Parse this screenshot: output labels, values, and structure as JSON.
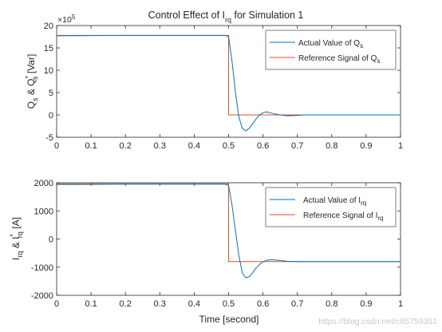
{
  "title": {
    "prefix": "Control Effect of I",
    "sub": "rq",
    "suffix": " for Simulation 1"
  },
  "watermark": "https://blog.csdn.net/c85759351",
  "colors": {
    "actual": "#0072BD",
    "reference": "#D95319",
    "axis": "#262626"
  },
  "chart_data": [
    {
      "type": "line",
      "panel": "top",
      "xlim": [
        0,
        1
      ],
      "ylim": [
        -5,
        20
      ],
      "y_multiplier": "×10",
      "y_multiplier_exp": "5",
      "x_ticks": [
        0,
        0.1,
        0.2,
        0.3,
        0.4,
        0.5,
        0.6,
        0.7,
        0.8,
        0.9,
        1
      ],
      "x_tick_labels": [
        "0",
        "0.1",
        "0.2",
        "0.3",
        "0.4",
        "0.5",
        "0.6",
        "0.7",
        "0.8",
        "0.9",
        "1"
      ],
      "y_ticks": [
        -5,
        0,
        5,
        10,
        15,
        20
      ],
      "y_tick_labels": [
        "-5",
        "0",
        "5",
        "10",
        "15",
        "20"
      ],
      "ylabel": {
        "p1": "Q",
        "p1sub": "s",
        "p2": " & Q",
        "p2sup": "*",
        "p2sub": "s",
        "p3": " [Var]"
      },
      "legend": {
        "placement": "top-right",
        "entries": [
          {
            "prefix": "Actual Value of Q",
            "sub": "s",
            "color": "#0072BD"
          },
          {
            "prefix": "Reference Signal of Q",
            "sub": "s",
            "color": "#D95319"
          }
        ]
      },
      "series": [
        {
          "name": "Actual Value of Qs",
          "color": "#0072BD",
          "points": [
            [
              0,
              17.7
            ],
            [
              0.1,
              17.75
            ],
            [
              0.2,
              17.8
            ],
            [
              0.3,
              17.8
            ],
            [
              0.4,
              17.8
            ],
            [
              0.49,
              17.8
            ],
            [
              0.5,
              17.5
            ],
            [
              0.51,
              12.0
            ],
            [
              0.52,
              5.0
            ],
            [
              0.53,
              -0.5
            ],
            [
              0.54,
              -3.0
            ],
            [
              0.55,
              -3.6
            ],
            [
              0.56,
              -3.0
            ],
            [
              0.57,
              -2.0
            ],
            [
              0.58,
              -0.9
            ],
            [
              0.59,
              0.0
            ],
            [
              0.6,
              0.5
            ],
            [
              0.61,
              0.7
            ],
            [
              0.62,
              0.5
            ],
            [
              0.63,
              0.3
            ],
            [
              0.65,
              0.0
            ],
            [
              0.67,
              -0.2
            ],
            [
              0.69,
              -0.15
            ],
            [
              0.72,
              0.0
            ],
            [
              0.75,
              0.0
            ],
            [
              0.8,
              0.0
            ],
            [
              0.9,
              0.0
            ],
            [
              1.0,
              0.0
            ]
          ]
        },
        {
          "name": "Reference Signal of Qs",
          "color": "#D95319",
          "points": [
            [
              0,
              17.8
            ],
            [
              0.5,
              17.8
            ],
            [
              0.5,
              0
            ],
            [
              1.0,
              0
            ]
          ]
        }
      ]
    },
    {
      "type": "line",
      "panel": "bottom",
      "xlim": [
        0,
        1
      ],
      "ylim": [
        -2000,
        2000
      ],
      "x_ticks": [
        0,
        0.1,
        0.2,
        0.3,
        0.4,
        0.5,
        0.6,
        0.7,
        0.8,
        0.9,
        1
      ],
      "x_tick_labels": [
        "0",
        "0.1",
        "0.2",
        "0.3",
        "0.4",
        "0.5",
        "0.6",
        "0.7",
        "0.8",
        "0.9",
        "1"
      ],
      "y_ticks": [
        -2000,
        -1000,
        0,
        1000,
        2000
      ],
      "y_tick_labels": [
        "-2000",
        "-1000",
        "0",
        "1000",
        "2000"
      ],
      "xlabel": "Time [second]",
      "ylabel": {
        "p1": "I",
        "p1sub": "rq",
        "p2": " & I",
        "p2sup": "*",
        "p2sub": "rq",
        "p3": " [A]"
      },
      "legend": {
        "placement": "top-right",
        "entries": [
          {
            "prefix": "Actual Value of I",
            "sub": "rq",
            "color": "#0072BD"
          },
          {
            "prefix": "Reference Signal of I",
            "sub": "rq",
            "color": "#D95319"
          }
        ]
      },
      "series": [
        {
          "name": "Actual Value of Irq",
          "color": "#0072BD",
          "points": [
            [
              0,
              1940
            ],
            [
              0.1,
              1945
            ],
            [
              0.2,
              1950
            ],
            [
              0.3,
              1950
            ],
            [
              0.4,
              1950
            ],
            [
              0.49,
              1950
            ],
            [
              0.5,
              1900
            ],
            [
              0.51,
              1200
            ],
            [
              0.52,
              300
            ],
            [
              0.53,
              -600
            ],
            [
              0.54,
              -1200
            ],
            [
              0.55,
              -1380
            ],
            [
              0.56,
              -1340
            ],
            [
              0.57,
              -1200
            ],
            [
              0.58,
              -1030
            ],
            [
              0.59,
              -900
            ],
            [
              0.6,
              -810
            ],
            [
              0.61,
              -760
            ],
            [
              0.62,
              -740
            ],
            [
              0.63,
              -740
            ],
            [
              0.65,
              -760
            ],
            [
              0.67,
              -790
            ],
            [
              0.7,
              -800
            ],
            [
              0.75,
              -800
            ],
            [
              0.8,
              -800
            ],
            [
              0.9,
              -800
            ],
            [
              1.0,
              -800
            ]
          ]
        },
        {
          "name": "Reference Signal of Irq",
          "color": "#D95319",
          "points": [
            [
              0,
              1960
            ],
            [
              0.5,
              1960
            ],
            [
              0.5,
              -800
            ],
            [
              1.0,
              -800
            ]
          ]
        }
      ]
    }
  ]
}
